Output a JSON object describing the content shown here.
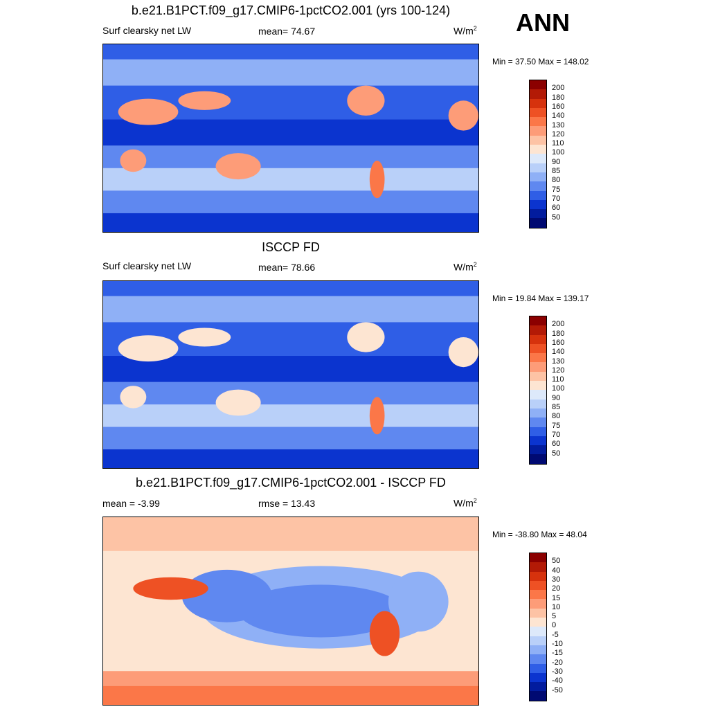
{
  "ann": "ANN",
  "chart_data": [
    {
      "type": "heatmap",
      "title": "b.e21.B1PCT.f09_g17.CMIP6-1pctCO2.001 (yrs 100-124)",
      "variable": "Surf clearsky net LW",
      "stat_text": "mean=  74.67",
      "units": "W/m",
      "units_sup": "2",
      "minmax": "Min =  37.50 Max = 148.02",
      "colorbar_levels": [
        "200",
        "180",
        "160",
        "140",
        "130",
        "120",
        "110",
        "100",
        "90",
        "85",
        "80",
        "75",
        "70",
        "60",
        "50"
      ],
      "colorbar_colors": [
        "#8b0000",
        "#b31a06",
        "#d6320d",
        "#ee5124",
        "#fb7748",
        "#fd9c78",
        "#fdc3a5",
        "#fde5d2",
        "#dde9fa",
        "#b9d0f9",
        "#8fb0f6",
        "#5f88f0",
        "#2f5ee6",
        "#0b34cf",
        "#021c9e",
        "#000a72"
      ]
    },
    {
      "type": "heatmap",
      "title": "ISCCP FD",
      "variable": "Surf clearsky net LW",
      "stat_text": "mean=  78.66",
      "units": "W/m",
      "units_sup": "2",
      "minmax": "Min =  19.84 Max = 139.17",
      "colorbar_levels": [
        "200",
        "180",
        "160",
        "140",
        "130",
        "120",
        "110",
        "100",
        "90",
        "85",
        "80",
        "75",
        "70",
        "60",
        "50"
      ],
      "colorbar_colors": [
        "#8b0000",
        "#b31a06",
        "#d6320d",
        "#ee5124",
        "#fb7748",
        "#fd9c78",
        "#fdc3a5",
        "#fde5d2",
        "#dde9fa",
        "#b9d0f9",
        "#8fb0f6",
        "#5f88f0",
        "#2f5ee6",
        "#0b34cf",
        "#021c9e",
        "#000a72"
      ]
    },
    {
      "type": "heatmap",
      "title": "b.e21.B1PCT.f09_g17.CMIP6-1pctCO2.001 - ISCCP FD",
      "stat_text": "mean =  -3.99",
      "rmse_text": "rmse =  13.43",
      "units": "W/m",
      "units_sup": "2",
      "minmax": "Min = -38.80 Max =  48.04",
      "colorbar_levels": [
        "50",
        "40",
        "30",
        "20",
        "15",
        "10",
        "5",
        "0",
        "-5",
        "-10",
        "-15",
        "-20",
        "-30",
        "-40",
        "-50"
      ],
      "colorbar_colors": [
        "#8b0000",
        "#b31a06",
        "#d6320d",
        "#ee5124",
        "#fb7748",
        "#fd9c78",
        "#fdc3a5",
        "#fde5d2",
        "#dde9fa",
        "#b9d0f9",
        "#8fb0f6",
        "#5f88f0",
        "#2f5ee6",
        "#0b34cf",
        "#021c9e",
        "#000a72"
      ]
    }
  ]
}
